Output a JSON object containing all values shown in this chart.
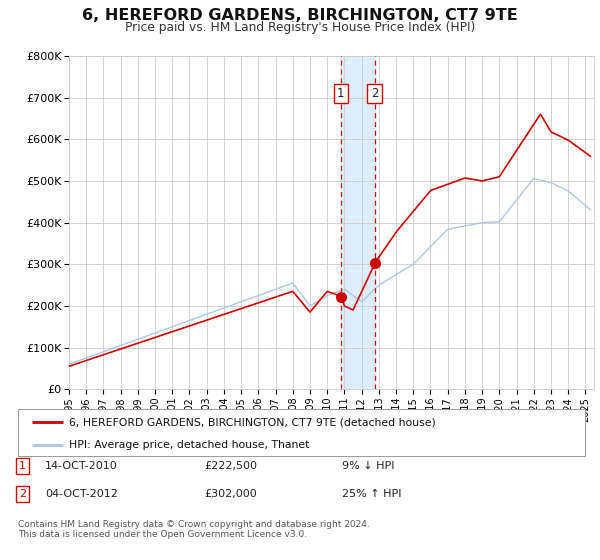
{
  "title": "6, HEREFORD GARDENS, BIRCHINGTON, CT7 9TE",
  "subtitle": "Price paid vs. HM Land Registry's House Price Index (HPI)",
  "ylim": [
    0,
    800000
  ],
  "yticks": [
    0,
    100000,
    200000,
    300000,
    400000,
    500000,
    600000,
    700000,
    800000
  ],
  "ytick_labels": [
    "£0",
    "£100K",
    "£200K",
    "£300K",
    "£400K",
    "£500K",
    "£600K",
    "£700K",
    "£800K"
  ],
  "xlim_start": 1995.0,
  "xlim_end": 2025.5,
  "background_color": "#ffffff",
  "plot_bg_color": "#ffffff",
  "grid_color": "#cccccc",
  "hpi_color": "#aec6e8",
  "price_color": "#cc0000",
  "transaction1": {
    "year": 2010.79,
    "price": 222500,
    "label": "1"
  },
  "transaction2": {
    "year": 2012.75,
    "price": 302000,
    "label": "2"
  },
  "shade_start": 2010.79,
  "shade_end": 2012.75,
  "shade_color": "#ddeeff",
  "vline_color": "#cc0000",
  "legend_entries": [
    "6, HEREFORD GARDENS, BIRCHINGTON, CT7 9TE (detached house)",
    "HPI: Average price, detached house, Thanet"
  ],
  "footnote": "Contains HM Land Registry data © Crown copyright and database right 2024.\nThis data is licensed under the Open Government Licence v3.0.",
  "table_rows": [
    {
      "label": "1",
      "date": "14-OCT-2010",
      "price": "£222,500",
      "pct": "9% ↓ HPI"
    },
    {
      "label": "2",
      "date": "04-OCT-2012",
      "price": "£302,000",
      "pct": "25% ↑ HPI"
    }
  ]
}
